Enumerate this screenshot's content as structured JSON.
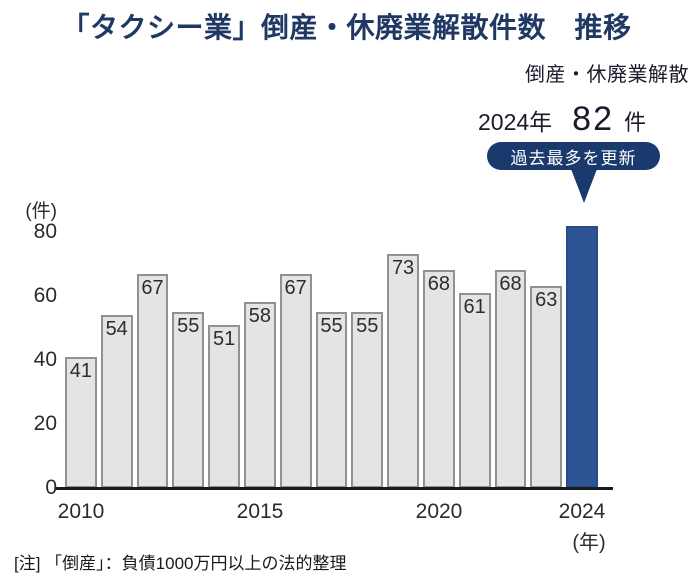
{
  "page": {
    "title": "「タクシー業」倒産・休廃業解散件数　推移",
    "footnote": "[注] 「倒産」：負債1000万円以上の法的整理"
  },
  "callout": {
    "series_label": "倒産・休廃業解散",
    "year": "2024年",
    "value": "82",
    "unit": "件",
    "badge": "過去最多を更新"
  },
  "chart_data": {
    "type": "bar",
    "title": "「タクシー業」倒産・休廃業解散件数 推移",
    "categories": [
      "2010",
      "2011",
      "2012",
      "2013",
      "2014",
      "2015",
      "2016",
      "2017",
      "2018",
      "2019",
      "2020",
      "2021",
      "2022",
      "2023",
      "2024"
    ],
    "values": [
      41,
      54,
      67,
      55,
      51,
      58,
      67,
      55,
      55,
      73,
      68,
      61,
      68,
      63,
      82
    ],
    "ylabel": "(件)",
    "xlabel": "(年)",
    "yticks": [
      0,
      20,
      40,
      60,
      80
    ],
    "xticks": [
      {
        "label": "2010",
        "index": 0
      },
      {
        "label": "2015",
        "index": 5
      },
      {
        "label": "2020",
        "index": 10
      },
      {
        "label": "2024",
        "index": 14
      }
    ],
    "ylim": [
      0,
      80
    ],
    "grid": false,
    "legend_position": "none",
    "highlight": {
      "index": 14,
      "year": "2024",
      "value": 82,
      "note": "過去最多を更新"
    },
    "value_labels_inside_bars": true
  },
  "colors": {
    "title_text": "#1F3864",
    "badge_bg": "#1A3A6E",
    "badge_text": "#FFFFFF",
    "highlight_bar": "#2F5496",
    "bar_fill": "#E2E4E5",
    "bar_border": "#8F9193",
    "axis_line": "#1A1A1A",
    "body_text": "#1A1A2B"
  }
}
